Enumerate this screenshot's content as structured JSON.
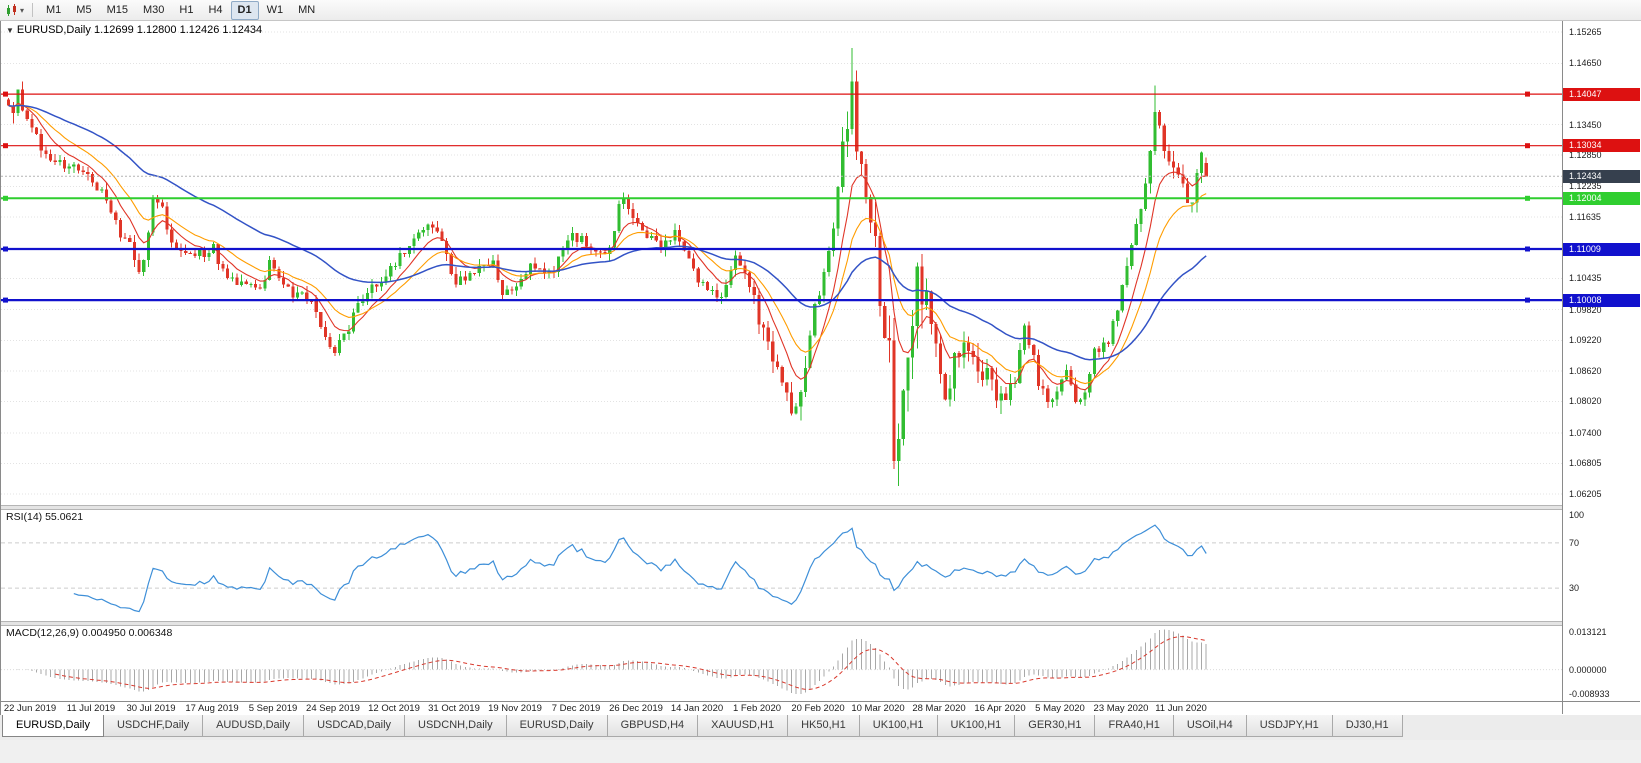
{
  "toolbar": {
    "timeframes": [
      "M1",
      "M5",
      "M15",
      "M30",
      "H1",
      "H4",
      "D1",
      "W1",
      "MN"
    ],
    "active_timeframe": "D1"
  },
  "chart": {
    "symbol_label": "EURUSD,Daily",
    "ohlc_label": "1.12699 1.12800 1.12426 1.12434",
    "price_axis": {
      "scale_top": 1.1548,
      "scale_bottom": 1.0597,
      "grid_labels": [
        "1.15265",
        "1.14650",
        "1.13450",
        "1.12850",
        "1.12235",
        "1.11635",
        "1.10435",
        "1.09820",
        "1.09220",
        "1.08620",
        "1.08020",
        "1.07400",
        "1.06805",
        "1.06205"
      ]
    },
    "horizontal_lines": [
      {
        "value": 1.14047,
        "label": "1.14047",
        "color": "#dd1111",
        "thickness": 1.2
      },
      {
        "value": 1.13034,
        "label": "1.13034",
        "color": "#dd1111",
        "thickness": 1.2
      },
      {
        "value": 1.12004,
        "label": "1.12004",
        "color": "#2fce2f",
        "thickness": 2
      },
      {
        "value": 1.11009,
        "label": "1.11009",
        "color": "#1111cd",
        "thickness": 2.2
      },
      {
        "value": 1.10008,
        "label": "1.10008",
        "color": "#1111cd",
        "thickness": 2.2
      }
    ],
    "current_price": {
      "value": 1.12434,
      "label": "1.12434",
      "tag_color": "#36404e"
    }
  },
  "indicators": {
    "rsi": {
      "label": "RSI(14) 55.0621",
      "period": 14,
      "value": "55.0621",
      "levels": [
        100,
        70,
        30
      ],
      "line_color": "#3e8fd8",
      "level_line_color": "#cccccc"
    },
    "macd": {
      "label": "MACD(12,26,9) 0.004950 0.006348",
      "params": "12,26,9",
      "values": [
        "0.004950",
        "0.006348"
      ],
      "axis_labels": [
        "0.013121",
        "0.000000",
        "-0.008933"
      ],
      "scale_max": 0.013121,
      "scale_min": -0.008933,
      "histogram_color": "#a8a8a8",
      "signal_color": "#d93a2e"
    }
  },
  "date_axis": [
    "22 Jun 2019",
    "11 Jul 2019",
    "30 Jul 2019",
    "17 Aug 2019",
    "5 Sep 2019",
    "24 Sep 2019",
    "12 Oct 2019",
    "31 Oct 2019",
    "19 Nov 2019",
    "7 Dec 2019",
    "26 Dec 2019",
    "14 Jan 2020",
    "1 Feb 2020",
    "20 Feb 2020",
    "10 Mar 2020",
    "28 Mar 2020",
    "16 Apr 2020",
    "5 May 2020",
    "23 May 2020",
    "11 Jun 2020"
  ],
  "tabs": {
    "active_index": 0,
    "items": [
      "EURUSD,Daily",
      "USDCHF,Daily",
      "AUDUSD,Daily",
      "USDCAD,Daily",
      "USDCNH,Daily",
      "EURUSD,Daily",
      "GBPUSD,H4",
      "XAUUSD,H1",
      "HK50,H1",
      "UK100,H1",
      "UK100,H1",
      "GER30,H1",
      "FRA40,H1",
      "USOil,H4",
      "USDJPY,H1",
      "DJ30,H1"
    ]
  },
  "chart_data": {
    "type": "candlestick",
    "title": "EURUSD Daily, Jun 2019 - Jun 2020",
    "candle_count": 258,
    "x_ticks_every_n_candles": 13,
    "first_tick_candle_index": 5,
    "close_anchors": [
      [
        0,
        1.1365
      ],
      [
        2,
        1.1398
      ],
      [
        4,
        1.135
      ],
      [
        7,
        1.13
      ],
      [
        10,
        1.127
      ],
      [
        13,
        1.1268
      ],
      [
        16,
        1.1248
      ],
      [
        19,
        1.1225
      ],
      [
        22,
        1.118
      ],
      [
        24,
        1.1125
      ],
      [
        26,
        1.1115
      ],
      [
        28,
        1.106
      ],
      [
        29,
        1.108
      ],
      [
        31,
        1.1195
      ],
      [
        33,
        1.1175
      ],
      [
        35,
        1.112
      ],
      [
        38,
        1.1095
      ],
      [
        41,
        1.109
      ],
      [
        44,
        1.1105
      ],
      [
        47,
        1.1035
      ],
      [
        50,
        1.104
      ],
      [
        52,
        1.1035
      ],
      [
        54,
        1.103
      ],
      [
        56,
        1.107
      ],
      [
        59,
        1.104
      ],
      [
        61,
        1.1
      ],
      [
        63,
        1.102
      ],
      [
        65,
        1.099
      ],
      [
        67,
        1.0945
      ],
      [
        70,
        1.0905
      ],
      [
        72,
        1.093
      ],
      [
        75,
        1.0985
      ],
      [
        78,
        1.104
      ],
      [
        80,
        1.1025
      ],
      [
        83,
        1.1075
      ],
      [
        86,
        1.11
      ],
      [
        89,
        1.1135
      ],
      [
        91,
        1.115
      ],
      [
        93,
        1.111
      ],
      [
        96,
        1.1035
      ],
      [
        99,
        1.105
      ],
      [
        102,
        1.107
      ],
      [
        104,
        1.1075
      ],
      [
        106,
        1.1015
      ],
      [
        109,
        1.102
      ],
      [
        112,
        1.1075
      ],
      [
        115,
        1.1055
      ],
      [
        117,
        1.106
      ],
      [
        119,
        1.1105
      ],
      [
        121,
        1.113
      ],
      [
        124,
        1.1115
      ],
      [
        127,
        1.109
      ],
      [
        129,
        1.111
      ],
      [
        131,
        1.118
      ],
      [
        132,
        1.121
      ],
      [
        134,
        1.117
      ],
      [
        137,
        1.1125
      ],
      [
        140,
        1.1105
      ],
      [
        143,
        1.113
      ],
      [
        145,
        1.1095
      ],
      [
        148,
        1.1035
      ],
      [
        151,
        1.102
      ],
      [
        153,
        1.1
      ],
      [
        155,
        1.1055
      ],
      [
        156,
        1.109
      ],
      [
        158,
        1.1055
      ],
      [
        160,
        1.1
      ],
      [
        162,
        1.094
      ],
      [
        164,
        1.088
      ],
      [
        166,
        1.0835
      ],
      [
        168,
        1.079
      ],
      [
        169,
        1.081
      ],
      [
        171,
        1.0855
      ],
      [
        173,
        1.0985
      ],
      [
        175,
        1.105
      ],
      [
        177,
        1.1135
      ],
      [
        179,
        1.1285
      ],
      [
        181,
        1.145
      ],
      [
        182,
        1.1285
      ],
      [
        184,
        1.118
      ],
      [
        186,
        1.114
      ],
      [
        187,
        1.0995
      ],
      [
        189,
        1.092
      ],
      [
        190,
        1.069
      ],
      [
        191,
        1.072
      ],
      [
        193,
        1.088
      ],
      [
        195,
        1.1035
      ],
      [
        197,
        1.1
      ],
      [
        199,
        1.091
      ],
      [
        201,
        1.0795
      ],
      [
        203,
        1.089
      ],
      [
        205,
        1.0915
      ],
      [
        208,
        1.085
      ],
      [
        210,
        1.087
      ],
      [
        212,
        1.082
      ],
      [
        214,
        1.08
      ],
      [
        216,
        1.0845
      ],
      [
        218,
        1.095
      ],
      [
        220,
        1.0895
      ],
      [
        221,
        1.084
      ],
      [
        223,
        1.08
      ],
      [
        225,
        1.0815
      ],
      [
        227,
        1.0855
      ],
      [
        229,
        1.0795
      ],
      [
        231,
        1.0825
      ],
      [
        233,
        1.09
      ],
      [
        234,
        1.0905
      ],
      [
        236,
        1.092
      ],
      [
        238,
        1.0985
      ],
      [
        240,
        1.107
      ],
      [
        242,
        1.1135
      ],
      [
        244,
        1.1235
      ],
      [
        246,
        1.1375
      ],
      [
        248,
        1.13
      ],
      [
        250,
        1.126
      ],
      [
        252,
        1.1215
      ],
      [
        254,
        1.118
      ],
      [
        255,
        1.1265
      ],
      [
        256,
        1.1305
      ],
      [
        257,
        1.12434
      ]
    ],
    "base_volatility": 0.0026,
    "volatility_ranges": [
      [
        0,
        5,
        0.0045
      ],
      [
        160,
        172,
        0.005
      ],
      [
        178,
        196,
        0.009
      ],
      [
        197,
        215,
        0.005
      ],
      [
        240,
        256,
        0.004
      ]
    ],
    "overrides": {
      "2": {
        "h": 1.1408
      },
      "181": {
        "h": 1.1495
      },
      "190": {
        "l": 1.067
      },
      "191": {
        "l": 1.0636
      },
      "246": {
        "h": 1.1422
      },
      "257": {
        "o": 1.12699,
        "h": 1.128,
        "l": 1.12426,
        "c": 1.12434
      }
    },
    "colors": {
      "up": "#31bd31",
      "down": "#e03527",
      "ma_fast": "#e03527",
      "ma_mid": "#ff9d00",
      "ma_slow": "#3353c6"
    },
    "ma_periods": {
      "fast": 8,
      "mid": 16,
      "slow": 45
    }
  }
}
